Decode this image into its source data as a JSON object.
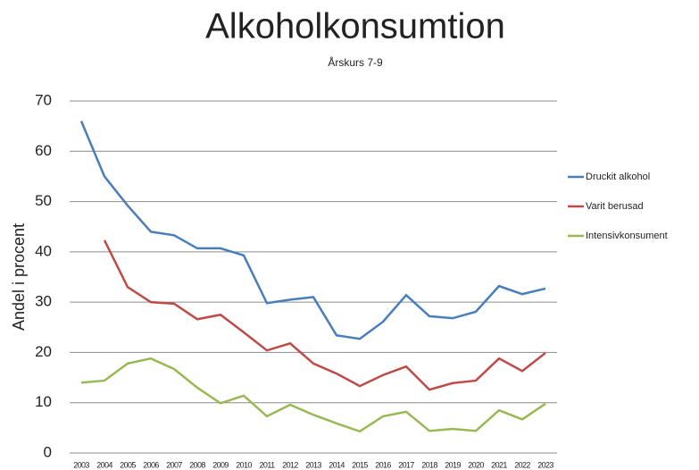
{
  "chart_data": {
    "type": "line",
    "title": "Alkoholkonsumtion",
    "subtitle": "Årskurs 7-9",
    "ylabel": "Andel i procent",
    "categories": [
      "2003",
      "2004",
      "2005",
      "2006",
      "2007",
      "2008",
      "2009",
      "2010",
      "2011",
      "2012",
      "2013",
      "2014",
      "2015",
      "2016",
      "2017",
      "2018",
      "2019",
      "2020",
      "2021",
      "2022",
      "2023"
    ],
    "series": [
      {
        "name": "Druckit alkohol",
        "color": "#4a7ebb",
        "values": [
          66,
          55,
          49.2,
          44,
          43.3,
          40.7,
          40.7,
          39.3,
          29.8,
          30.5,
          31,
          23.4,
          22.7,
          26.1,
          31.4,
          27.2,
          26.8,
          28.1,
          33.2,
          31.6,
          32.7
        ]
      },
      {
        "name": "Varit berusad",
        "color": "#be4b48",
        "values": [
          null,
          42.3,
          33,
          30,
          29.7,
          26.6,
          27.5,
          24,
          20.4,
          21.8,
          17.8,
          15.8,
          13.3,
          15.5,
          17.2,
          12.6,
          13.9,
          14.4,
          18.8,
          16.3,
          19.9
        ]
      },
      {
        "name": "Intensivkonsument",
        "color": "#98b954",
        "values": [
          14,
          14.4,
          17.8,
          18.8,
          16.7,
          13,
          9.9,
          11.4,
          7.3,
          9.6,
          7.6,
          5.9,
          4.3,
          7.3,
          8.2,
          4.4,
          4.8,
          4.4,
          8.5,
          6.7,
          9.8
        ]
      }
    ],
    "ylim": [
      0,
      70
    ],
    "yticks": [
      0,
      10,
      20,
      30,
      40,
      50,
      60,
      70
    ],
    "grid": true,
    "legend": "right"
  }
}
